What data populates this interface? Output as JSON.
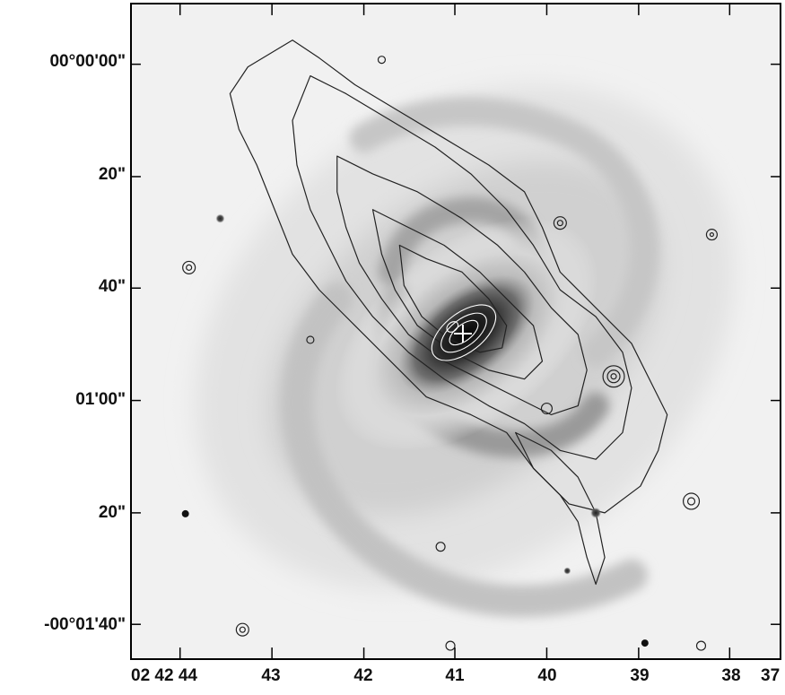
{
  "figure": {
    "description_free": true,
    "y_tick_labels": [
      "00°00'00\"",
      "20\"",
      "40\"",
      "01'00\"",
      "20\"",
      "-00°01'40\""
    ],
    "x_tick_labels": [
      "02 42 44",
      "43",
      "42",
      "41",
      "40",
      "39",
      "38",
      "37"
    ],
    "colors": {
      "sky_background": "#f1f1f1",
      "galaxy_core": "#1a1a1a",
      "contour_dark": "#222222",
      "contour_light": "#ffffff",
      "frame": "#000000"
    },
    "markers": {
      "nucleus_marker": "white-cross"
    }
  }
}
